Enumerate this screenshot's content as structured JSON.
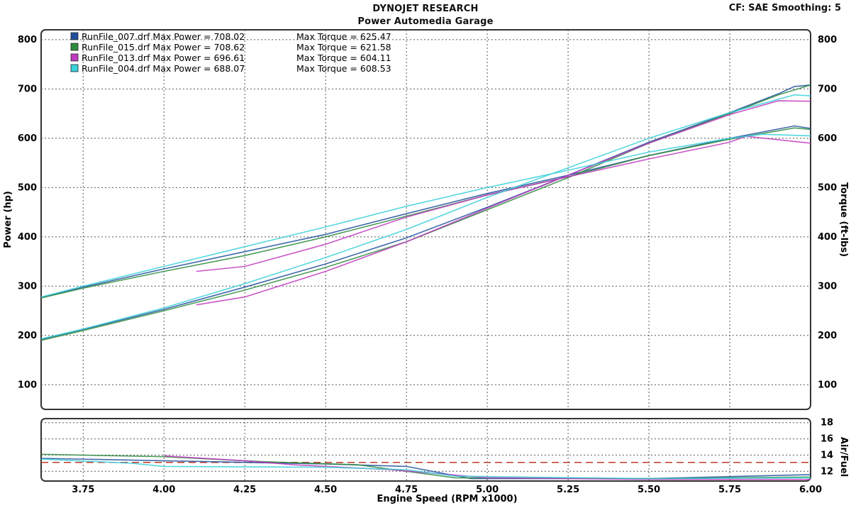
{
  "header": {
    "title": "DYNOJET RESEARCH",
    "subtitle": "Power Automedia Garage",
    "cf_label": "CF: SAE  Smoothing: 5"
  },
  "chart_data": [
    {
      "type": "line",
      "xlabel": "Engine Speed (RPM x1000)",
      "ylabel": "Power (hp)",
      "y2label": "Torque (ft-lbs)",
      "xlim": [
        3.62,
        6.0
      ],
      "ylim": [
        50,
        820
      ],
      "xticks": [
        "3.75",
        "4.00",
        "4.25",
        "4.50",
        "4.75",
        "5.00",
        "5.25",
        "5.50",
        "5.75",
        "6.00"
      ],
      "yticks": [
        "100",
        "200",
        "300",
        "400",
        "500",
        "600",
        "700",
        "800"
      ],
      "y2ticks": [
        "100",
        "200",
        "300",
        "400",
        "500",
        "600",
        "700",
        "800"
      ],
      "grid": true,
      "legend_position": "top-left",
      "series": [
        {
          "name": "RunFile_007.drf",
          "max_power_label": "Max Power = 708.02",
          "max_torque_label": "Max Torque = 625.47",
          "color": "#1e4f9c",
          "power": [
            [
              3.62,
              192
            ],
            [
              3.75,
              212
            ],
            [
              4.0,
              253
            ],
            [
              4.25,
              298
            ],
            [
              4.5,
              345
            ],
            [
              4.75,
              398
            ],
            [
              5.0,
              460
            ],
            [
              5.25,
              525
            ],
            [
              5.5,
              592
            ],
            [
              5.75,
              652
            ],
            [
              5.9,
              690
            ],
            [
              5.95,
              705
            ],
            [
              6.0,
              708
            ]
          ],
          "torque": [
            [
              3.62,
              277
            ],
            [
              3.75,
              298
            ],
            [
              4.0,
              335
            ],
            [
              4.25,
              370
            ],
            [
              4.5,
              405
            ],
            [
              4.75,
              447
            ],
            [
              5.0,
              488
            ],
            [
              5.25,
              525
            ],
            [
              5.5,
              565
            ],
            [
              5.75,
              600
            ],
            [
              5.95,
              625
            ],
            [
              6.0,
              620
            ]
          ]
        },
        {
          "name": "RunFile_015.drf",
          "max_power_label": "Max Power = 708.62",
          "max_torque_label": "Max Torque = 621.58",
          "color": "#2e8b3e",
          "power": [
            [
              3.62,
              190
            ],
            [
              3.75,
              210
            ],
            [
              4.0,
              250
            ],
            [
              4.25,
              292
            ],
            [
              4.5,
              338
            ],
            [
              4.75,
              390
            ],
            [
              5.0,
              455
            ],
            [
              5.25,
              520
            ],
            [
              5.5,
              590
            ],
            [
              5.75,
              650
            ],
            [
              5.9,
              688
            ],
            [
              6.0,
              708
            ]
          ],
          "torque": [
            [
              3.62,
              276
            ],
            [
              3.75,
              296
            ],
            [
              4.0,
              330
            ],
            [
              4.25,
              362
            ],
            [
              4.5,
              400
            ],
            [
              4.75,
              442
            ],
            [
              5.0,
              485
            ],
            [
              5.25,
              522
            ],
            [
              5.5,
              565
            ],
            [
              5.75,
              598
            ],
            [
              5.95,
              621
            ],
            [
              6.0,
              618
            ]
          ]
        },
        {
          "name": "RunFile_013.drf",
          "max_power_label": "Max Power = 696.61",
          "max_torque_label": "Max Torque = 604.11",
          "color": "#c03ac0",
          "power": [
            [
              4.1,
              262
            ],
            [
              4.25,
              278
            ],
            [
              4.5,
              330
            ],
            [
              4.75,
              390
            ],
            [
              5.0,
              458
            ],
            [
              5.25,
              525
            ],
            [
              5.5,
              590
            ],
            [
              5.75,
              648
            ],
            [
              5.9,
              676
            ],
            [
              6.0,
              675
            ]
          ],
          "torque": [
            [
              4.1,
              330
            ],
            [
              4.25,
              340
            ],
            [
              4.5,
              385
            ],
            [
              4.75,
              440
            ],
            [
              5.0,
              485
            ],
            [
              5.25,
              522
            ],
            [
              5.5,
              558
            ],
            [
              5.75,
              592
            ],
            [
              5.8,
              604
            ],
            [
              6.0,
              590
            ]
          ]
        },
        {
          "name": "RunFile_004.drf",
          "max_power_label": "Max Power = 688.07",
          "max_torque_label": "Max Torque = 608.53",
          "color": "#3ad0d8",
          "power": [
            [
              3.62,
              193
            ],
            [
              3.75,
              213
            ],
            [
              4.0,
              256
            ],
            [
              4.25,
              305
            ],
            [
              4.5,
              358
            ],
            [
              4.75,
              415
            ],
            [
              5.0,
              480
            ],
            [
              5.25,
              540
            ],
            [
              5.5,
              600
            ],
            [
              5.75,
              652
            ],
            [
              5.95,
              688
            ],
            [
              6.0,
              686
            ]
          ],
          "torque": [
            [
              3.62,
              278
            ],
            [
              3.75,
              300
            ],
            [
              4.0,
              340
            ],
            [
              4.25,
              380
            ],
            [
              4.5,
              420
            ],
            [
              4.75,
              462
            ],
            [
              5.0,
              500
            ],
            [
              5.25,
              535
            ],
            [
              5.5,
              572
            ],
            [
              5.75,
              600
            ],
            [
              5.85,
              608
            ],
            [
              6.0,
              605
            ]
          ]
        }
      ]
    },
    {
      "type": "line",
      "xlabel": "Engine Speed (RPM x1000)",
      "y2label": "Air/Fuel",
      "xlim": [
        3.62,
        6.0
      ],
      "ylim": [
        10.8,
        18.5
      ],
      "yticks": [
        "12",
        "14",
        "16",
        "18"
      ],
      "reference_line": 13.1,
      "reference_color": "#c0392b",
      "series": [
        {
          "name": "RunFile_007.drf",
          "color": "#1e4f9c",
          "afr": [
            [
              3.62,
              13.6
            ],
            [
              4.0,
              13.3
            ],
            [
              4.5,
              12.9
            ],
            [
              4.75,
              12.6
            ],
            [
              4.95,
              11.1
            ],
            [
              5.5,
              11.1
            ],
            [
              6.0,
              11.6
            ]
          ]
        },
        {
          "name": "RunFile_015.drf",
          "color": "#2e8b3e",
          "afr": [
            [
              3.62,
              14.1
            ],
            [
              4.0,
              13.8
            ],
            [
              4.3,
              13.2
            ],
            [
              4.6,
              12.8
            ],
            [
              4.9,
              11.2
            ],
            [
              5.5,
              11.1
            ],
            [
              6.0,
              11.3
            ]
          ]
        },
        {
          "name": "RunFile_013.drf",
          "color": "#c03ac0",
          "afr": [
            [
              4.0,
              13.9
            ],
            [
              4.25,
              13.3
            ],
            [
              4.4,
              12.8
            ],
            [
              4.7,
              12.2
            ],
            [
              5.0,
              11.2
            ],
            [
              5.5,
              11.0
            ],
            [
              6.0,
              11.0
            ]
          ]
        },
        {
          "name": "RunFile_004.drf",
          "color": "#3ad0d8",
          "afr": [
            [
              3.62,
              13.5
            ],
            [
              3.9,
              13.0
            ],
            [
              4.0,
              12.6
            ],
            [
              4.5,
              12.5
            ],
            [
              4.75,
              12.2
            ],
            [
              4.9,
              11.4
            ],
            [
              5.5,
              11.1
            ],
            [
              6.0,
              11.2
            ]
          ]
        }
      ]
    }
  ]
}
